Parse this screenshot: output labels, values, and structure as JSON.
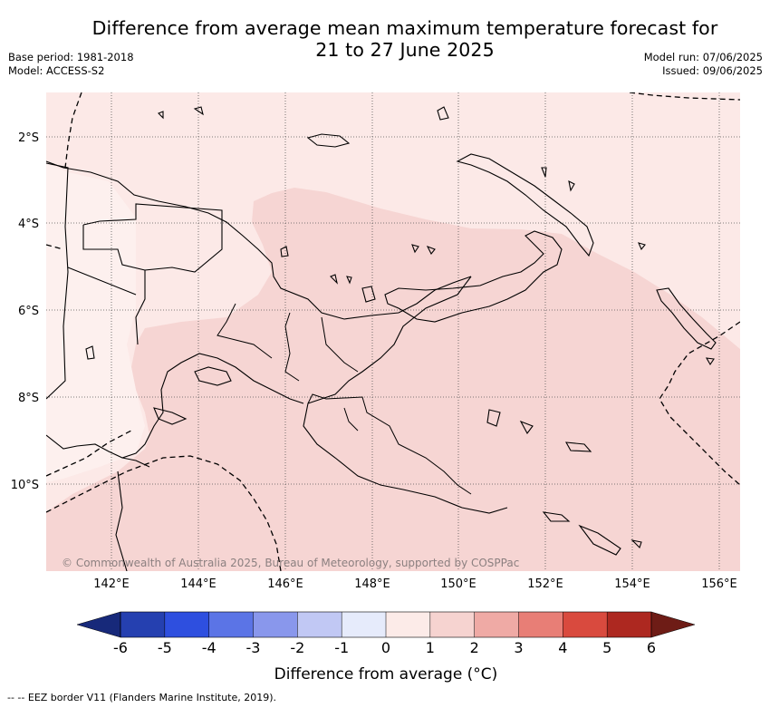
{
  "title": {
    "line1": "Difference from average mean maximum temperature forecast for",
    "line2": "21 to 27 June 2025"
  },
  "meta": {
    "base_period": "Base period: 1981-2018",
    "model": "Model: ACCESS-S2",
    "model_run": "Model run: 07/06/2025",
    "issued": "Issued: 09/06/2025"
  },
  "map": {
    "region": "Papua New Guinea",
    "lat_labels": [
      "2°S",
      "4°S",
      "6°S",
      "8°S",
      "10°S"
    ],
    "lon_labels": [
      "142°E",
      "144°E",
      "146°E",
      "148°E",
      "150°E",
      "152°E",
      "154°E",
      "156°E"
    ],
    "copyright": "© Commonwealth of Australia 2025, Bureau of Meteorology, supported by COSPPac",
    "fill_colors": {
      "class_0_to_1": "#fce9e7",
      "class_1_to_2": "#f6d5d3"
    }
  },
  "colorbar": {
    "title": "Difference from average (°C)",
    "ticks": [
      "-6",
      "-5",
      "-4",
      "-3",
      "-2",
      "-1",
      "0",
      "1",
      "2",
      "3",
      "4",
      "5",
      "6"
    ],
    "under_color": "#17297a",
    "over_color": "#6e1c16",
    "colors": [
      "#2540b0",
      "#2e4fdf",
      "#5b74e6",
      "#8997ec",
      "#c1c8f4",
      "#e6ebfb",
      "#fcebe8",
      "#f6d3d0",
      "#efaaa5",
      "#e87e76",
      "#d94a3e",
      "#ad2820"
    ]
  },
  "footer": {
    "legend_line": "-- -- EEZ border V11 (Flanders Marine Institute, 2019)."
  }
}
